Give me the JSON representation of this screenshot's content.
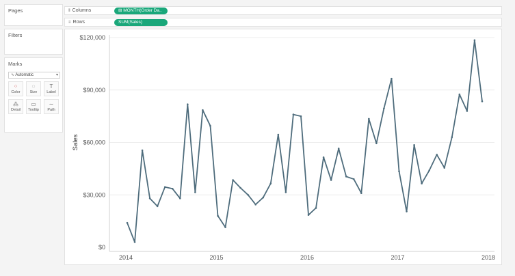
{
  "panels": {
    "pages_title": "Pages",
    "filters_title": "Filters",
    "marks_title": "Marks",
    "marks_type": "Automatic",
    "mark_buttons": [
      {
        "label": "Color",
        "icon": "color-dots-icon",
        "glyph": "⁘"
      },
      {
        "label": "Size",
        "icon": "size-icon",
        "glyph": "◌"
      },
      {
        "label": "Label",
        "icon": "label-icon",
        "glyph": "T"
      },
      {
        "label": "Detail",
        "icon": "detail-icon",
        "glyph": "⁂"
      },
      {
        "label": "Tooltip",
        "icon": "tooltip-icon",
        "glyph": "▭"
      },
      {
        "label": "Path",
        "icon": "path-icon",
        "glyph": "∼"
      }
    ]
  },
  "shelves": {
    "columns_label": "Columns",
    "columns_pill": "MONTH(Order Da..",
    "rows_label": "Rows",
    "rows_pill": "SUM(Sales)",
    "pill_color": "#1aa77a"
  },
  "chart_data": {
    "type": "line",
    "ylabel": "Sales",
    "xlabel": "",
    "ylim": [
      0,
      120000
    ],
    "y_ticks": [
      {
        "value": 0,
        "label": "$0"
      },
      {
        "value": 30000,
        "label": "$30,000"
      },
      {
        "value": 60000,
        "label": "$60,000"
      },
      {
        "value": 90000,
        "label": "$90,000"
      },
      {
        "value": 120000,
        "label": "$120,000"
      }
    ],
    "x_ticks": [
      "2014",
      "2015",
      "2016",
      "2017",
      "2018"
    ],
    "line_color": "#4e6c7c",
    "series": [
      {
        "x": [
          "2014-01",
          "2014-02",
          "2014-03",
          "2014-04",
          "2014-05",
          "2014-06",
          "2014-07",
          "2014-08",
          "2014-09",
          "2014-10",
          "2014-11",
          "2014-12",
          "2015-01",
          "2015-02",
          "2015-03",
          "2015-04",
          "2015-05",
          "2015-06",
          "2015-07",
          "2015-08",
          "2015-09",
          "2015-10",
          "2015-11",
          "2015-12",
          "2016-01",
          "2016-02",
          "2016-03",
          "2016-04",
          "2016-05",
          "2016-06",
          "2016-07",
          "2016-08",
          "2016-09",
          "2016-10",
          "2016-11",
          "2016-12",
          "2017-01",
          "2017-02",
          "2017-03",
          "2017-04",
          "2017-05",
          "2017-06",
          "2017-07",
          "2017-08",
          "2017-09",
          "2017-10",
          "2017-11",
          "2017-12"
        ],
        "values": [
          14000,
          3000,
          55500,
          28000,
          23500,
          34500,
          33500,
          28000,
          81800,
          31500,
          78500,
          69500,
          18000,
          11500,
          38500,
          34000,
          30000,
          24500,
          28500,
          36500,
          64500,
          31500,
          76000,
          75000,
          18500,
          22500,
          51500,
          38500,
          56500,
          40500,
          39000,
          31000,
          73500,
          59500,
          79500,
          96500,
          43500,
          20500,
          58500,
          36500,
          44000,
          53000,
          45500,
          63000,
          87500,
          78000,
          118500,
          83500
        ]
      }
    ]
  }
}
